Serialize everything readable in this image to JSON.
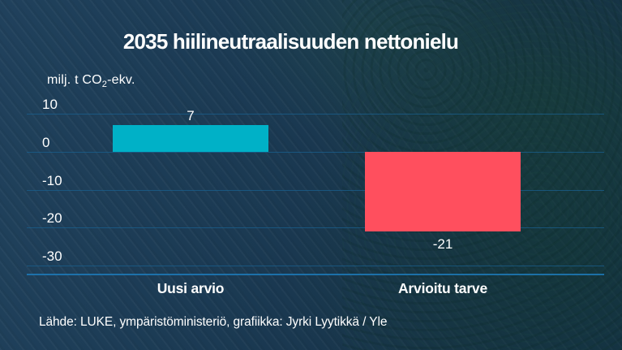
{
  "chart_data": {
    "type": "bar",
    "title": "2035 hiilineutraalisuuden nettonielu",
    "unit": {
      "prefix": "milj. t CO",
      "subscript": "2",
      "suffix": "-ekv."
    },
    "categories": [
      "Uusi arvio",
      "Arvioitu tarve"
    ],
    "values": [
      7,
      -21
    ],
    "value_labels": [
      "7",
      "-21"
    ],
    "bar_colors": [
      "#00b1c7",
      "#ff4f5e"
    ],
    "y_ticks": [
      "10",
      "0",
      "-10",
      "-20",
      "-30"
    ],
    "ylim": [
      -32,
      12
    ],
    "grid": true,
    "legend_position": "none",
    "source": "Lähde: LUKE, ympäristöministeriö, grafiikka: Jyrki Lyytikkä / Yle",
    "colors": {
      "text": "#ffffff",
      "gridline": "#19608f",
      "axis_line": "#1d7ab8",
      "background": "#1a3750"
    }
  }
}
